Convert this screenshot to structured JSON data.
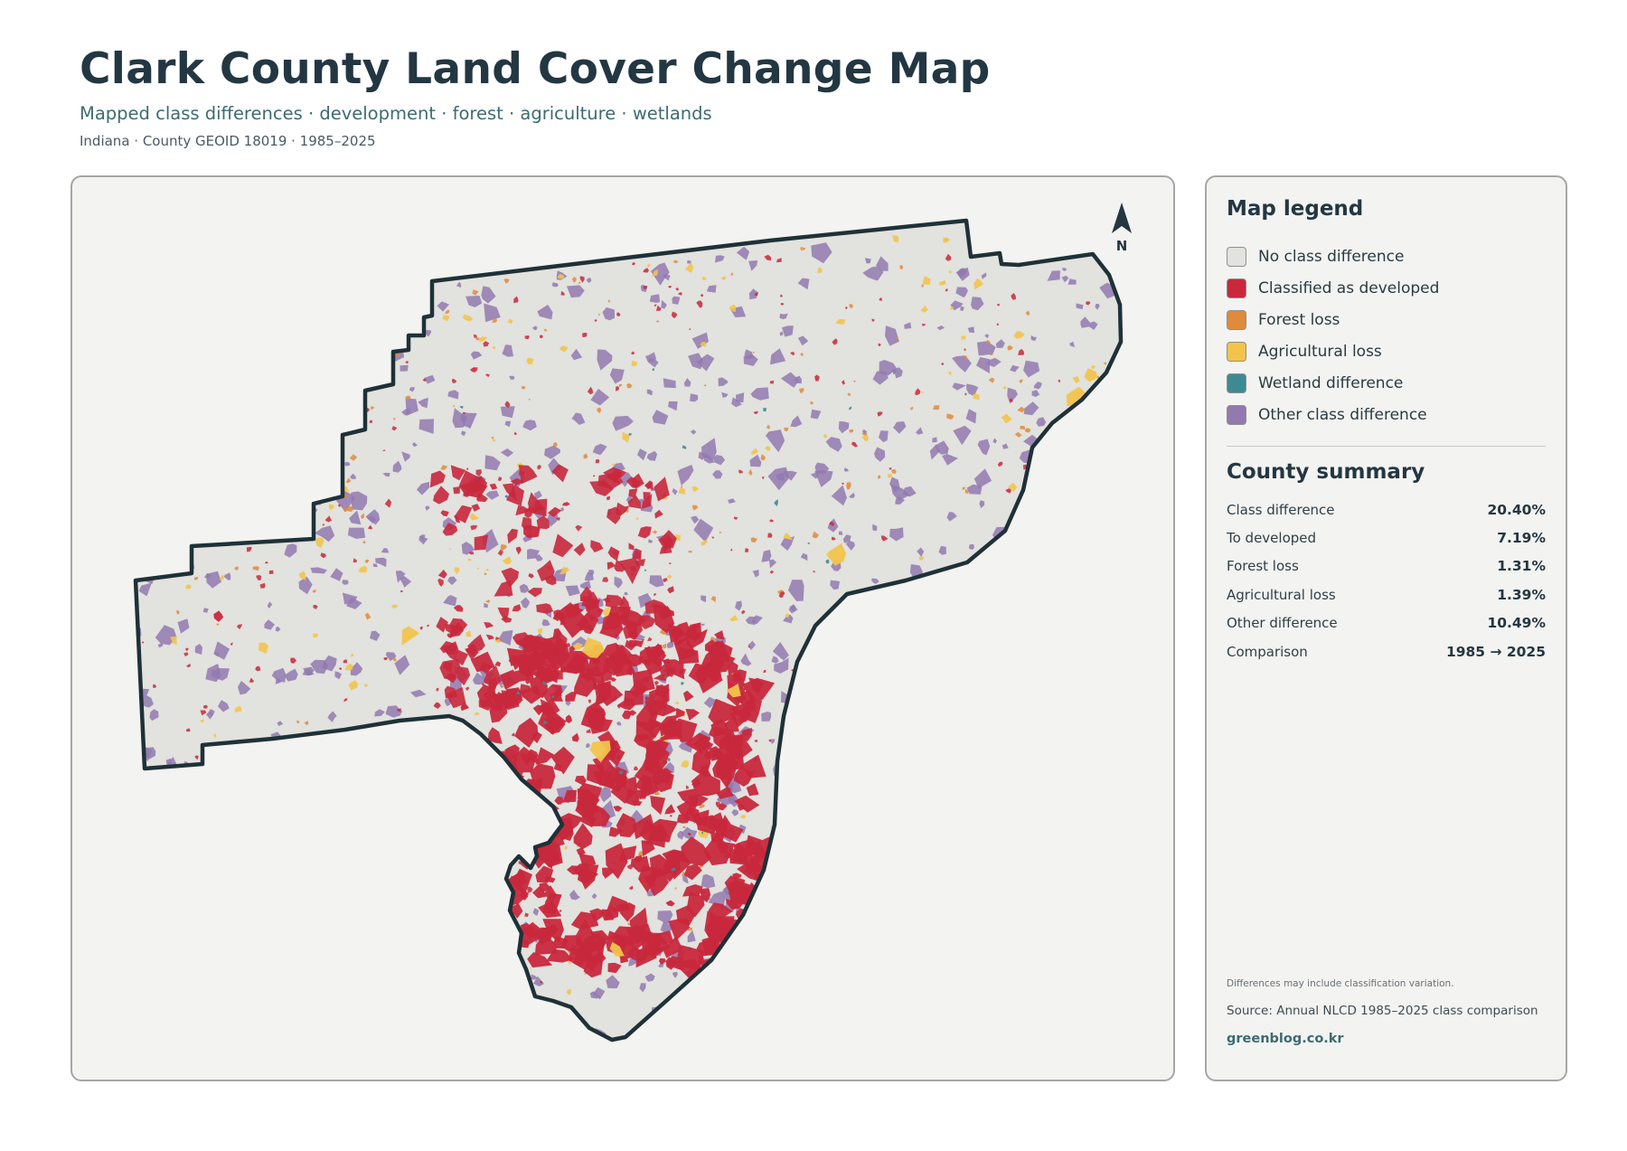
{
  "header": {
    "title": "Clark County Land Cover Change Map",
    "subtitle": "Mapped class differences · development · forest · agriculture · wetlands",
    "meta": "Indiana · County GEOID 18019 · 1985–2025"
  },
  "map": {
    "north_label": "N",
    "colors": {
      "no_change": "#e2e2de",
      "developed": "#c8283c",
      "forest_loss": "#e08a3c",
      "agricultural_loss": "#f2c44c",
      "wetland": "#3f8a92",
      "other": "#9279b0",
      "outline": "#1f3138"
    }
  },
  "legend": {
    "heading": "Map legend",
    "items": [
      {
        "label": "No class difference",
        "color": "#e2e2de"
      },
      {
        "label": "Classified as developed",
        "color": "#c8283c"
      },
      {
        "label": "Forest loss",
        "color": "#e08a3c"
      },
      {
        "label": "Agricultural loss",
        "color": "#f2c44c"
      },
      {
        "label": "Wetland difference",
        "color": "#3f8a92"
      },
      {
        "label": "Other class difference",
        "color": "#9279b0"
      }
    ]
  },
  "summary": {
    "heading": "County summary",
    "rows": [
      {
        "label": "Class difference",
        "value": "20.40%"
      },
      {
        "label": "To developed",
        "value": "7.19%"
      },
      {
        "label": "Forest loss",
        "value": "1.31%"
      },
      {
        "label": "Agricultural loss",
        "value": "1.39%"
      },
      {
        "label": "Other difference",
        "value": "10.49%"
      },
      {
        "label": "Comparison",
        "value": "1985 → 2025"
      }
    ]
  },
  "footer": {
    "note": "Differences may include classification variation.",
    "source": "Source: Annual NLCD 1985–2025 class comparison",
    "site": "greenblog.co.kr"
  }
}
